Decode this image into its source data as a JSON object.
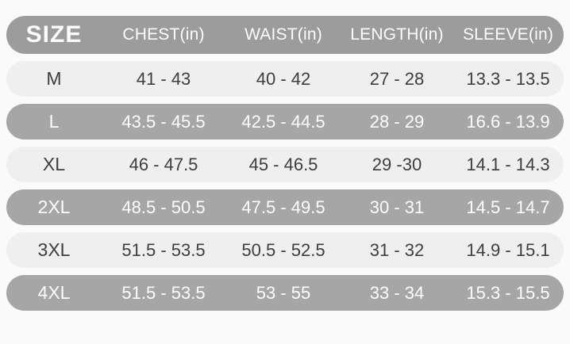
{
  "chart_data": {
    "type": "table",
    "columns": [
      "SIZE",
      "CHEST(in)",
      "WAIST(in)",
      "LENGTH(in)",
      "SLEEVE(in)"
    ],
    "rows": [
      {
        "size": "M",
        "chest": "41 - 43",
        "waist": "40 - 42",
        "length": "27 - 28",
        "sleeve": "13.3 - 13.5"
      },
      {
        "size": "L",
        "chest": "43.5 - 45.5",
        "waist": "42.5 - 44.5",
        "length": "28 - 29",
        "sleeve": "16.6 - 13.9"
      },
      {
        "size": "XL",
        "chest": "46 - 47.5",
        "waist": "45 - 46.5",
        "length": "29 -30",
        "sleeve": "14.1 - 14.3"
      },
      {
        "size": "2XL",
        "chest": "48.5 - 50.5",
        "waist": "47.5 - 49.5",
        "length": "30 - 31",
        "sleeve": "14.5 - 14.7"
      },
      {
        "size": "3XL",
        "chest": "51.5 - 53.5",
        "waist": "50.5 - 52.5",
        "length": "31 - 32",
        "sleeve": "14.9 - 15.1"
      },
      {
        "size": "4XL",
        "chest": "51.5 - 53.5",
        "waist": "53 - 55",
        "length": "33 - 34",
        "sleeve": "15.3 - 15.5"
      }
    ],
    "layout": {
      "units": "inches",
      "row_shape": "rounded-pill",
      "row_alternation": [
        "light",
        "gray"
      ]
    }
  },
  "colors": {
    "page_bg": "#fafafa",
    "header_bg": "#9c9c9c",
    "row_gray_bg": "#a6a6a6",
    "row_light_bg": "#efefef",
    "text_dark": "#3e3e3e",
    "text_light": "#fcfcfc"
  }
}
